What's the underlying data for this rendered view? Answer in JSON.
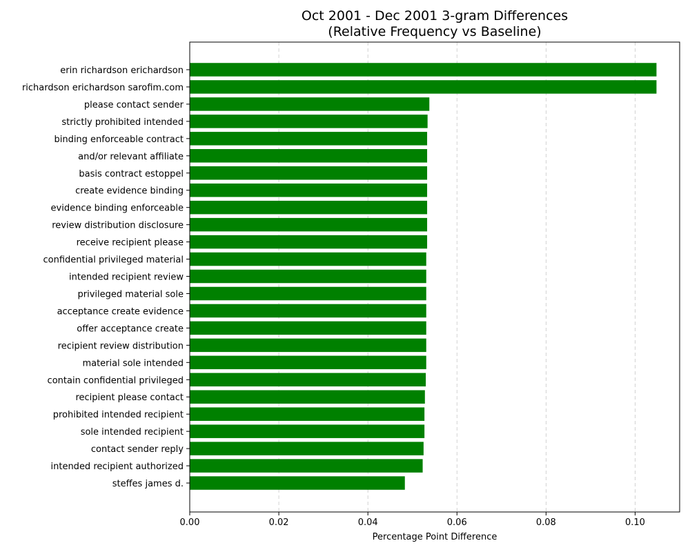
{
  "chart_data": {
    "type": "bar",
    "orientation": "horizontal",
    "title_line1": "Oct 2001 - Dec 2001 3-gram Differences",
    "title_line2": "(Relative Frequency vs Baseline)",
    "xlabel": "Percentage Point Difference",
    "ylabel": "",
    "xlim": [
      0,
      0.11
    ],
    "xticks": [
      0.0,
      0.02,
      0.04,
      0.06,
      0.08,
      0.1
    ],
    "xtick_labels": [
      "0.00",
      "0.02",
      "0.04",
      "0.06",
      "0.08",
      "0.10"
    ],
    "grid": "x-dashed",
    "bar_color": "#008000",
    "categories": [
      "erin richardson erichardson",
      "richardson erichardson sarofim.com",
      "please contact sender",
      "strictly prohibited intended",
      "binding enforceable contract",
      "and/or relevant affiliate",
      "basis contract estoppel",
      "create evidence binding",
      "evidence binding enforceable",
      "review distribution disclosure",
      "receive recipient please",
      "confidential privileged material",
      "intended recipient review",
      "privileged material sole",
      "acceptance create evidence",
      "offer acceptance create",
      "recipient review distribution",
      "material sole intended",
      "contain confidential privileged",
      "recipient please contact",
      "prohibited intended recipient",
      "sole intended recipient",
      "contact sender reply",
      "intended recipient authorized",
      "steffes james d."
    ],
    "values": [
      0.1048,
      0.1048,
      0.0538,
      0.0534,
      0.0533,
      0.0533,
      0.0533,
      0.0533,
      0.0533,
      0.0533,
      0.0533,
      0.0531,
      0.0531,
      0.0531,
      0.0531,
      0.0531,
      0.0531,
      0.0531,
      0.053,
      0.0528,
      0.0527,
      0.0527,
      0.0525,
      0.0523,
      0.0483
    ]
  }
}
